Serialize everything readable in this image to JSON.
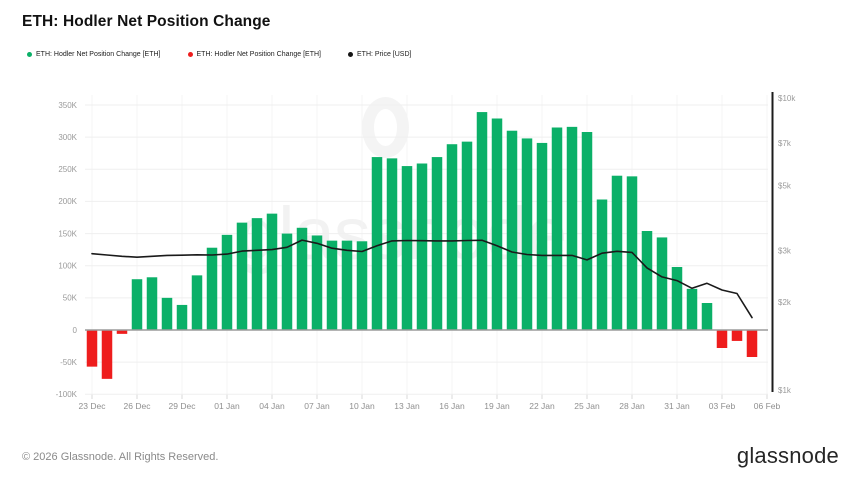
{
  "header": {
    "title": "ETH: Hodler Net Position Change"
  },
  "legend": {
    "items": [
      {
        "label": "ETH: Hodler Net Position Change [ETH]",
        "color": "#0bb068"
      },
      {
        "label": "ETH: Hodler Net Position Change [ETH]",
        "color": "#ee1d1d"
      },
      {
        "label": "ETH: Price [USD]",
        "color": "#141414"
      }
    ]
  },
  "watermark": {
    "text": "glassnode"
  },
  "footer": {
    "copyright": "© 2026 Glassnode. All Rights Reserved.",
    "logo": "glassnode"
  },
  "colors": {
    "positive": "#0bb068",
    "negative": "#ee1d1d",
    "price_line": "#1a1a1a",
    "grid_h": "#efefef",
    "grid_v": "#f4f4f4",
    "zero_line": "#9b9b9b",
    "right_axis_line": "#1c1c1c",
    "axis_text": "#9a9a9a"
  },
  "chart_data": {
    "type": "bar",
    "title": "ETH: Hodler Net Position Change",
    "categories": [
      "23 Dec",
      "24 Dec",
      "25 Dec",
      "26 Dec",
      "27 Dec",
      "28 Dec",
      "29 Dec",
      "30 Dec",
      "31 Dec",
      "01 Jan",
      "02 Jan",
      "03 Jan",
      "04 Jan",
      "05 Jan",
      "06 Jan",
      "07 Jan",
      "08 Jan",
      "09 Jan",
      "10 Jan",
      "11 Jan",
      "12 Jan",
      "13 Jan",
      "14 Jan",
      "15 Jan",
      "16 Jan",
      "17 Jan",
      "18 Jan",
      "19 Jan",
      "20 Jan",
      "21 Jan",
      "22 Jan",
      "23 Jan",
      "24 Jan",
      "25 Jan",
      "26 Jan",
      "27 Jan",
      "28 Jan",
      "29 Jan",
      "30 Jan",
      "31 Jan",
      "01 Feb",
      "02 Feb",
      "03 Feb",
      "04 Feb",
      "05 Feb"
    ],
    "series": [
      {
        "name": "ETH: Hodler Net Position Change [ETH]",
        "type": "bar",
        "unit": "ETH",
        "axis": "left",
        "values": [
          -57000,
          -76000,
          -6000,
          79000,
          82000,
          50000,
          39000,
          85000,
          128000,
          148000,
          167000,
          174000,
          181000,
          150000,
          159000,
          147000,
          139000,
          139000,
          138000,
          269000,
          267000,
          255000,
          259000,
          269000,
          289000,
          293000,
          339000,
          329000,
          310000,
          298000,
          291000,
          315000,
          316000,
          308000,
          203000,
          240000,
          239000,
          154000,
          144000,
          98000,
          64000,
          42000,
          -28000,
          -17000,
          -42000
        ]
      },
      {
        "name": "ETH: Price [USD]",
        "type": "line",
        "unit": "USD",
        "axis": "right",
        "values": [
          2930,
          2900,
          2870,
          2850,
          2870,
          2890,
          2895,
          2905,
          2900,
          2920,
          2990,
          3010,
          3025,
          3080,
          3260,
          3180,
          3060,
          3010,
          2980,
          3120,
          3240,
          3250,
          3245,
          3240,
          3240,
          3250,
          3255,
          3120,
          2970,
          2910,
          2890,
          2890,
          2890,
          2790,
          2940,
          2985,
          2960,
          2620,
          2440,
          2370,
          2230,
          2320,
          2200,
          2140,
          1770
        ]
      }
    ],
    "left_axis": {
      "ylim": [
        -100000,
        350000
      ],
      "grid": true,
      "ticks": [
        {
          "label": "350K",
          "value": 350000
        },
        {
          "label": "300K",
          "value": 300000
        },
        {
          "label": "250K",
          "value": 250000
        },
        {
          "label": "200K",
          "value": 200000
        },
        {
          "label": "150K",
          "value": 150000
        },
        {
          "label": "100K",
          "value": 100000
        },
        {
          "label": "50K",
          "value": 50000
        },
        {
          "label": "0",
          "value": 0
        },
        {
          "label": "-50K",
          "value": -50000
        },
        {
          "label": "-100K",
          "value": -100000
        }
      ]
    },
    "right_axis": {
      "scale": "log",
      "ylim": [
        1000,
        10000
      ],
      "ticks": [
        {
          "label": "$10k",
          "value": 10000
        },
        {
          "label": "$7k",
          "value": 7000
        },
        {
          "label": "$5k",
          "value": 5000
        },
        {
          "label": "$3k",
          "value": 3000
        },
        {
          "label": "$2k",
          "value": 2000
        },
        {
          "label": "$1k",
          "value": 1000
        }
      ]
    },
    "x_axis": {
      "tick_labels": [
        "23 Dec",
        "26 Dec",
        "29 Dec",
        "01 Jan",
        "04 Jan",
        "07 Jan",
        "10 Jan",
        "13 Jan",
        "16 Jan",
        "19 Jan",
        "22 Jan",
        "25 Jan",
        "28 Jan",
        "31 Jan",
        "03 Feb",
        "06 Feb"
      ]
    },
    "legend_position": "top-left"
  }
}
